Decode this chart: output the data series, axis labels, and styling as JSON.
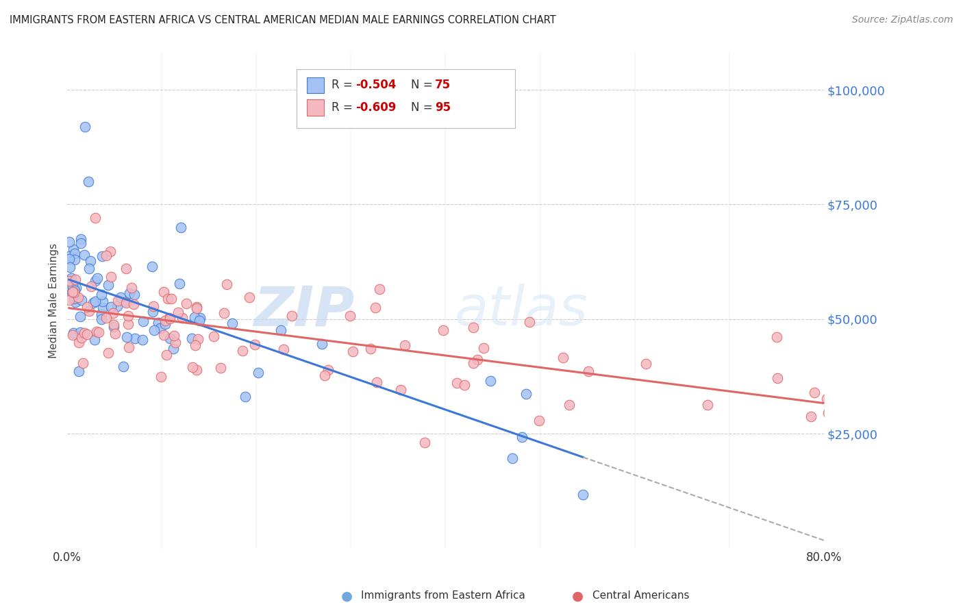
{
  "title": "IMMIGRANTS FROM EASTERN AFRICA VS CENTRAL AMERICAN MEDIAN MALE EARNINGS CORRELATION CHART",
  "source": "Source: ZipAtlas.com",
  "ylabel": "Median Male Earnings",
  "y_ticks": [
    25000,
    50000,
    75000,
    100000
  ],
  "y_tick_labels": [
    "$25,000",
    "$50,000",
    "$75,000",
    "$100,000"
  ],
  "xmin": 0.0,
  "xmax": 0.8,
  "ymin": 0,
  "ymax": 108000,
  "blue_R": -0.504,
  "blue_N": 75,
  "pink_R": -0.609,
  "pink_N": 95,
  "blue_color": "#a4c2f4",
  "pink_color": "#f4b8c1",
  "blue_line_color": "#3c78d8",
  "pink_line_color": "#e06666",
  "axis_label_color": "#3c78d8",
  "title_color": "#222222",
  "source_color": "#888888",
  "watermark_zip": "ZIP",
  "watermark_atlas": "atlas",
  "watermark_color": "#d0e4f7",
  "grid_color": "#cccccc",
  "legend_blue_label": "Immigrants from Eastern Africa",
  "legend_pink_label": "Central Americans",
  "bottom_legend_blue_color": "#6fa8dc",
  "bottom_legend_pink_color": "#e06666"
}
